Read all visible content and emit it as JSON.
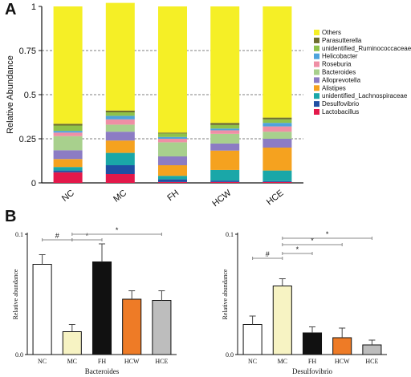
{
  "panels": {
    "a": "A",
    "b": "B"
  },
  "chart_data": [
    {
      "type": "bar",
      "stacked": true,
      "ylabel": "Relative Abundance",
      "ylim": [
        0,
        1
      ],
      "yticks": [
        "0",
        "0.25",
        "0.5",
        "0.75",
        "1"
      ],
      "grid": "dashed at 0.25, 0.5, 0.75",
      "legend_position": "right",
      "categories": [
        "NC",
        "MC",
        "FH",
        "HCW",
        "HCE"
      ],
      "series": [
        {
          "name": "Lactobacillus",
          "color": "#e3184a",
          "values": [
            0.06,
            0.05,
            0.005,
            0.005,
            0.005
          ]
        },
        {
          "name": "Desulfovibrio",
          "color": "#1f4fa3",
          "values": [
            0.01,
            0.05,
            0.015,
            0.008,
            0.005
          ]
        },
        {
          "name": "unidentified_Lachnospiraceae",
          "color": "#1aa7a8",
          "values": [
            0.02,
            0.07,
            0.02,
            0.06,
            0.06
          ]
        },
        {
          "name": "Alistipes",
          "color": "#f5a21f",
          "values": [
            0.045,
            0.07,
            0.06,
            0.11,
            0.13
          ]
        },
        {
          "name": "Alloprevotella",
          "color": "#8c7cc4",
          "values": [
            0.05,
            0.05,
            0.05,
            0.04,
            0.05
          ]
        },
        {
          "name": "Bacteroides",
          "color": "#a8d08d",
          "values": [
            0.08,
            0.04,
            0.08,
            0.055,
            0.04
          ]
        },
        {
          "name": "Roseburia",
          "color": "#ef8fa5",
          "values": [
            0.02,
            0.03,
            0.02,
            0.02,
            0.03
          ]
        },
        {
          "name": "Helicobacter",
          "color": "#4ea3dc",
          "values": [
            0.01,
            0.02,
            0.01,
            0.01,
            0.02
          ]
        },
        {
          "name": "unidentified_Ruminococcaceae",
          "color": "#8fc24a",
          "values": [
            0.03,
            0.02,
            0.02,
            0.02,
            0.02
          ]
        },
        {
          "name": "Parasutterella",
          "color": "#6e6e2e",
          "values": [
            0.01,
            0.01,
            0.005,
            0.012,
            0.01
          ]
        },
        {
          "name": "Others",
          "color": "#f5ef26",
          "values": [
            0.665,
            0.61,
            0.715,
            0.66,
            0.63
          ]
        }
      ]
    },
    {
      "type": "bar",
      "xlabel": "Bacteroides",
      "ylabel": "Relative abundance",
      "ylim": [
        0,
        0.1
      ],
      "yticks": [
        "0.0",
        "0.1"
      ],
      "categories": [
        "NC",
        "MC",
        "FH",
        "HCW",
        "HCE"
      ],
      "values": [
        0.075,
        0.019,
        0.077,
        0.046,
        0.045
      ],
      "errors": [
        0.008,
        0.006,
        0.015,
        0.007,
        0.008
      ],
      "colors": [
        "#ffffff",
        "#f7f3c3",
        "#111111",
        "#ee7b26",
        "#bdbdbd"
      ],
      "annotations": [
        {
          "label": "#",
          "from": "NC",
          "to": "MC"
        },
        {
          "label": "*",
          "from": "MC",
          "to": "FH"
        },
        {
          "label": "*",
          "from": "MC",
          "to": "HCE"
        }
      ]
    },
    {
      "type": "bar",
      "xlabel": "Desulfovibrio",
      "ylabel": "Relative abundance",
      "ylim": [
        0,
        0.1
      ],
      "yticks": [
        "0.0",
        "0.1"
      ],
      "categories": [
        "NC",
        "MC",
        "FH",
        "HCW",
        "HCE"
      ],
      "values": [
        0.025,
        0.057,
        0.018,
        0.014,
        0.008
      ],
      "errors": [
        0.007,
        0.006,
        0.005,
        0.008,
        0.004
      ],
      "colors": [
        "#ffffff",
        "#f7f3c3",
        "#111111",
        "#ee7b26",
        "#bdbdbd"
      ],
      "annotations": [
        {
          "label": "#",
          "from": "NC",
          "to": "MC"
        },
        {
          "label": "*",
          "from": "MC",
          "to": "FH"
        },
        {
          "label": "*",
          "from": "MC",
          "to": "HCW"
        },
        {
          "label": "*",
          "from": "MC",
          "to": "HCE"
        }
      ]
    }
  ]
}
